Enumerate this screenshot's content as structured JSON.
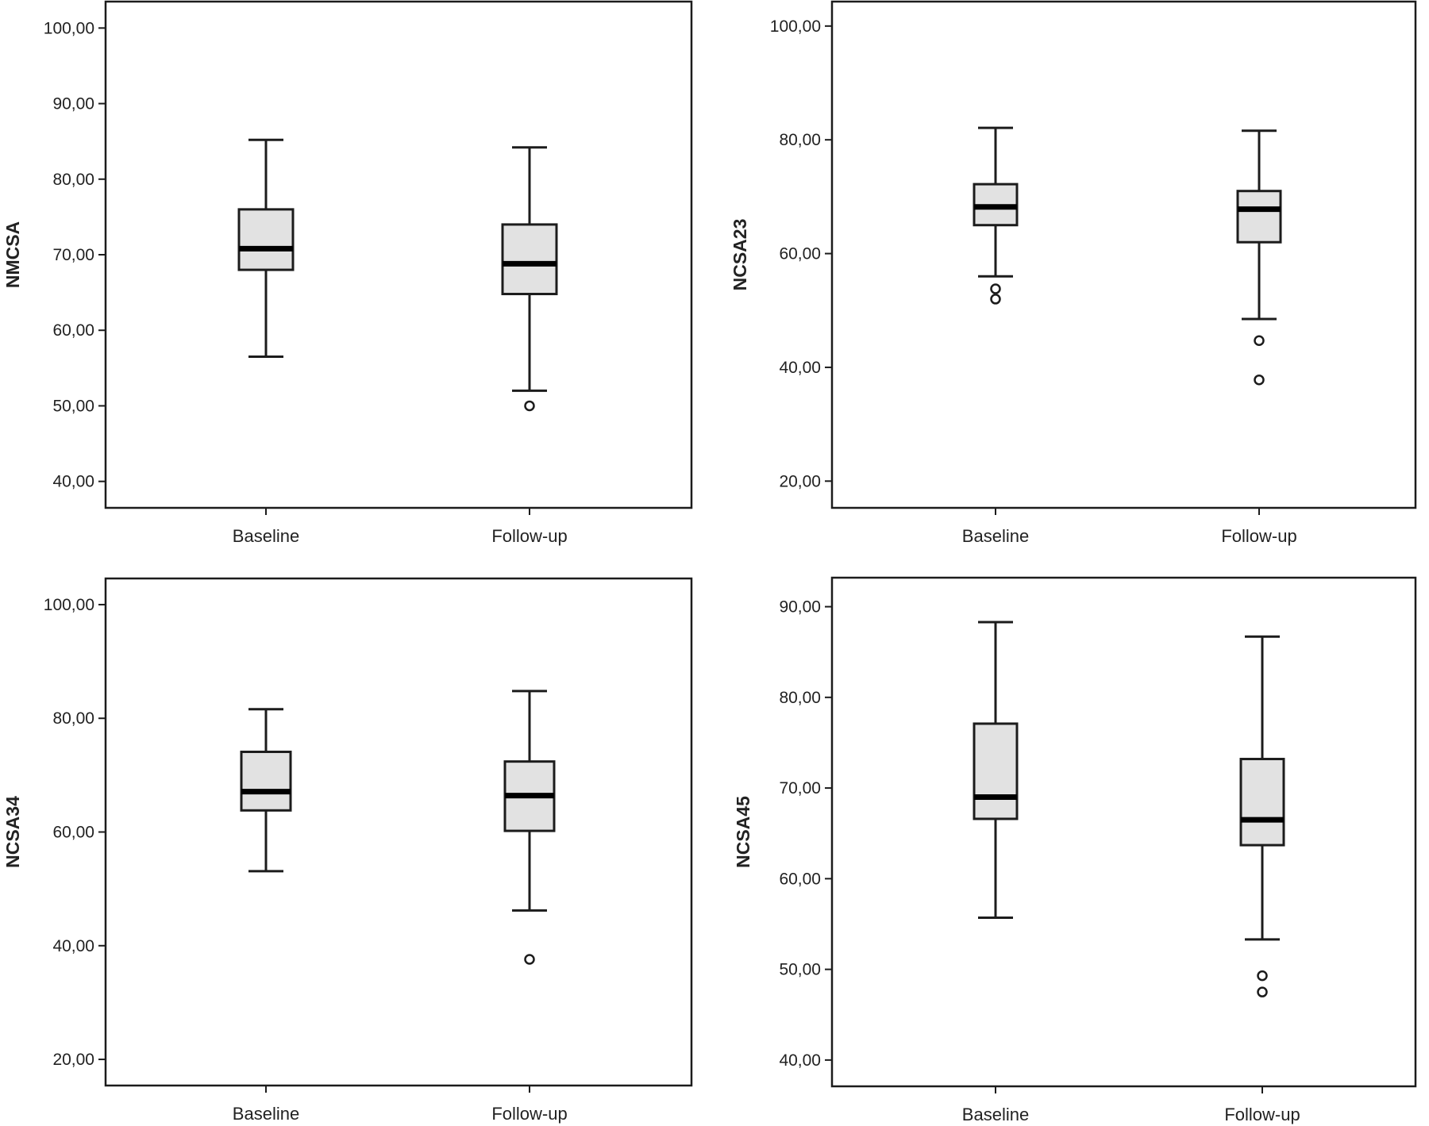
{
  "colors": {
    "box_fill": "#e2e2e2",
    "stroke": "#1c1c1c",
    "median": "#000000",
    "background": "#ffffff"
  },
  "chart_data": [
    {
      "type": "box",
      "ylabel": "NMCSA",
      "categories": [
        "Baseline",
        "Follow-up"
      ],
      "ylim": [
        36.5,
        103.5
      ],
      "yticks": [
        100,
        90,
        80,
        70,
        60,
        50,
        40
      ],
      "ytick_labels": [
        "100,00",
        "90,00",
        "80,00",
        "70,00",
        "60,00",
        "50,00",
        "40,00"
      ],
      "boxes": [
        {
          "name": "Baseline",
          "whisker_low": 56.5,
          "q1": 68.0,
          "median": 70.8,
          "q3": 76.0,
          "whisker_high": 85.2,
          "outliers": []
        },
        {
          "name": "Follow-up",
          "whisker_low": 52.0,
          "q1": 64.8,
          "median": 68.8,
          "q3": 74.0,
          "whisker_high": 84.2,
          "outliers": [
            50.0
          ]
        }
      ]
    },
    {
      "type": "box",
      "ylabel": "NCSA23",
      "categories": [
        "Baseline",
        "Follow-up"
      ],
      "ylim": [
        15.3,
        104.3
      ],
      "yticks": [
        100,
        80,
        60,
        40,
        20
      ],
      "ytick_labels": [
        "100,00",
        "80,00",
        "60,00",
        "40,00",
        "20,00"
      ],
      "boxes": [
        {
          "name": "Baseline",
          "whisker_low": 56.0,
          "q1": 65.0,
          "median": 68.2,
          "q3": 72.2,
          "whisker_high": 82.1,
          "outliers": [
            53.8,
            52.0
          ]
        },
        {
          "name": "Follow-up",
          "whisker_low": 48.5,
          "q1": 62.0,
          "median": 67.8,
          "q3": 71.0,
          "whisker_high": 81.6,
          "outliers": [
            44.7,
            37.8
          ]
        }
      ]
    },
    {
      "type": "box",
      "ylabel": "NCSA34",
      "categories": [
        "Baseline",
        "Follow-up"
      ],
      "ylim": [
        15.4,
        104.6
      ],
      "yticks": [
        100,
        80,
        60,
        40,
        20
      ],
      "ytick_labels": [
        "100,00",
        "80,00",
        "60,00",
        "40,00",
        "20,00"
      ],
      "boxes": [
        {
          "name": "Baseline",
          "whisker_low": 53.1,
          "q1": 63.8,
          "median": 67.1,
          "q3": 74.1,
          "whisker_high": 81.6,
          "outliers": []
        },
        {
          "name": "Follow-up",
          "whisker_low": 46.2,
          "q1": 60.2,
          "median": 66.4,
          "q3": 72.4,
          "whisker_high": 84.8,
          "outliers": [
            37.6
          ]
        }
      ]
    },
    {
      "type": "box",
      "ylabel": "NCSA45",
      "categories": [
        "Baseline",
        "Follow-up"
      ],
      "ylim": [
        37.1,
        93.2
      ],
      "yticks": [
        90,
        80,
        70,
        60,
        50,
        40
      ],
      "ytick_labels": [
        "90,00",
        "80,00",
        "70,00",
        "60,00",
        "50,00",
        "40,00"
      ],
      "boxes": [
        {
          "name": "Baseline",
          "whisker_low": 55.7,
          "q1": 66.6,
          "median": 69.0,
          "q3": 77.1,
          "whisker_high": 88.3,
          "outliers": []
        },
        {
          "name": "Follow-up",
          "whisker_low": 53.3,
          "q1": 63.7,
          "median": 66.5,
          "q3": 73.2,
          "whisker_high": 86.7,
          "outliers": [
            49.3,
            47.5
          ]
        }
      ]
    }
  ]
}
